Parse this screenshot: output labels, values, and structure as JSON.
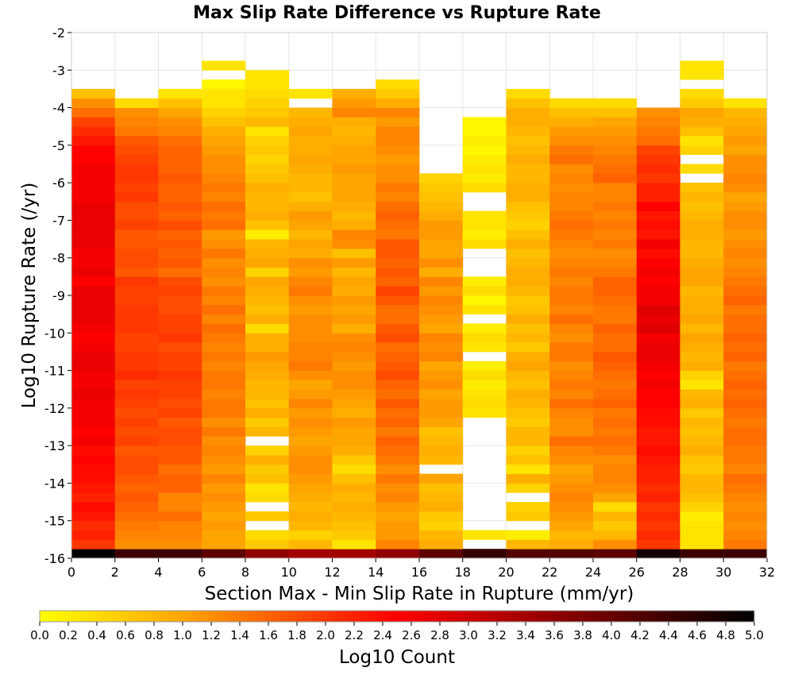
{
  "chart_data": {
    "type": "heatmap",
    "title": "Max Slip Rate Difference vs Rupture Rate",
    "xlabel": "Section Max - Min Slip Rate in Rupture (mm/yr)",
    "ylabel": "Log10 Rupture Rate (/yr)",
    "colorbar_label": "Log10 Count",
    "xlim": [
      0,
      32
    ],
    "ylim": [
      -16,
      -2
    ],
    "x_ticks": [
      "0",
      "2",
      "4",
      "6",
      "8",
      "10",
      "12",
      "14",
      "16",
      "18",
      "20",
      "22",
      "24",
      "26",
      "28",
      "30",
      "32"
    ],
    "y_ticks": [
      "-2",
      "-3",
      "-4",
      "-5",
      "-6",
      "-7",
      "-8",
      "-9",
      "-10",
      "-11",
      "-12",
      "-13",
      "-14",
      "-15",
      "-16"
    ],
    "colorbar_ticks": [
      "0.0",
      "0.2",
      "0.4",
      "0.6",
      "0.8",
      "1.0",
      "1.2",
      "1.4",
      "1.6",
      "1.8",
      "2.0",
      "2.2",
      "2.4",
      "2.6",
      "2.8",
      "3.0",
      "3.2",
      "3.4",
      "3.6",
      "3.8",
      "4.0",
      "4.2",
      "4.4",
      "4.6",
      "4.8",
      "5.0"
    ],
    "color_range": [
      0,
      5
    ],
    "colormap": [
      "#ffff00",
      "#ffa500",
      "#ff0000",
      "#000000"
    ],
    "x_bin_width": 2,
    "y_bin_height": 0.25,
    "y_bin_start": -16,
    "columns": [
      {
        "x0": 0,
        "v": [
          5.0,
          2.0,
          2.2,
          2.1,
          2.3,
          2.4,
          2.2,
          2.3,
          2.4,
          2.4,
          2.5,
          2.4,
          2.6,
          2.5,
          2.6,
          2.6,
          2.6,
          2.7,
          2.6,
          2.6,
          2.7,
          2.7,
          2.6,
          2.5,
          2.6,
          2.7,
          2.7,
          2.7,
          2.7,
          2.5,
          2.7,
          2.6,
          2.6,
          2.7,
          2.7,
          2.7,
          2.7,
          2.7,
          2.6,
          2.6,
          2.6,
          2.6,
          2.5,
          2.5,
          2.3,
          2.1,
          1.9,
          1.5,
          1.2,
          0.7,
          null,
          null,
          null,
          null,
          null,
          null
        ]
      },
      {
        "x0": 2,
        "v": [
          4.4,
          1.2,
          1.3,
          1.4,
          1.5,
          1.6,
          1.7,
          1.6,
          1.7,
          1.8,
          1.8,
          1.7,
          1.9,
          1.8,
          1.9,
          1.8,
          1.9,
          2.0,
          1.9,
          2.1,
          2.0,
          2.0,
          1.9,
          1.9,
          2.0,
          2.0,
          2.0,
          1.9,
          1.9,
          2.0,
          1.7,
          1.8,
          1.8,
          1.7,
          1.7,
          1.9,
          1.8,
          1.8,
          2.0,
          1.9,
          2.0,
          2.0,
          1.9,
          1.8,
          1.7,
          1.4,
          1.3,
          1.2,
          0.4,
          null,
          null,
          null,
          null,
          null,
          null,
          null
        ]
      },
      {
        "x0": 4,
        "v": [
          4.4,
          1.2,
          1.3,
          1.3,
          1.5,
          1.3,
          1.3,
          1.6,
          1.6,
          1.5,
          1.7,
          1.7,
          1.8,
          1.8,
          1.7,
          1.9,
          1.8,
          1.9,
          1.9,
          2.0,
          1.9,
          1.9,
          1.8,
          2.0,
          1.9,
          1.9,
          1.8,
          1.8,
          1.9,
          1.8,
          1.5,
          1.7,
          1.6,
          1.7,
          1.6,
          1.8,
          1.6,
          1.7,
          1.6,
          1.6,
          1.7,
          1.6,
          1.6,
          1.6,
          1.5,
          1.3,
          1.2,
          1.0,
          0.7,
          0.3,
          null,
          null,
          null,
          null,
          null,
          null
        ]
      },
      {
        "x0": 6,
        "v": [
          4.1,
          1.0,
          1.0,
          1.1,
          1.0,
          1.1,
          1.2,
          1.1,
          1.3,
          1.1,
          1.2,
          1.3,
          1.2,
          1.4,
          1.2,
          1.4,
          1.4,
          1.3,
          1.4,
          1.4,
          1.3,
          1.4,
          1.3,
          1.4,
          1.5,
          1.3,
          1.5,
          1.3,
          1.4,
          1.2,
          1.3,
          1.2,
          1.4,
          1.2,
          1.1,
          1.5,
          1.4,
          1.5,
          1.3,
          1.4,
          1.3,
          1.2,
          1.2,
          1.1,
          1.0,
          0.9,
          0.7,
          0.5,
          0.3,
          0.3,
          0.1,
          null,
          0.3,
          null,
          null,
          null
        ]
      },
      {
        "x0": 8,
        "v": [
          3.6,
          0.6,
          0.4,
          null,
          0.6,
          null,
          0.4,
          0.3,
          0.7,
          0.6,
          0.9,
          0.5,
          null,
          0.8,
          0.6,
          0.9,
          0.7,
          0.8,
          0.8,
          0.9,
          1.0,
          1.1,
          0.9,
          0.9,
          0.4,
          0.9,
          0.7,
          0.8,
          0.9,
          1.0,
          0.5,
          1.0,
          0.9,
          0.8,
          0.2,
          0.7,
          0.9,
          0.8,
          0.8,
          0.9,
          0.7,
          0.6,
          0.5,
          0.6,
          0.5,
          0.3,
          0.8,
          0.6,
          0.5,
          0.4,
          0.3,
          0.3,
          null,
          null,
          null,
          null
        ]
      },
      {
        "x0": 10,
        "v": [
          3.4,
          0.8,
          0.5,
          0.8,
          0.9,
          0.8,
          0.9,
          1.0,
          1.1,
          1.2,
          1.2,
          1.1,
          1.0,
          1.1,
          1.2,
          1.1,
          1.3,
          1.1,
          1.0,
          1.2,
          1.4,
          1.3,
          1.3,
          1.2,
          1.2,
          1.2,
          1.1,
          1.2,
          1.4,
          1.3,
          1.1,
          1.2,
          0.9,
          1.0,
          0.8,
          1.0,
          1.1,
          0.9,
          0.7,
          0.8,
          0.8,
          0.9,
          1.0,
          0.9,
          0.9,
          1.0,
          0.9,
          0.8,
          null,
          0.3,
          null,
          null,
          null,
          null,
          null,
          null
        ]
      },
      {
        "x0": 12,
        "v": [
          3.4,
          0.3,
          0.6,
          0.7,
          0.8,
          0.9,
          0.8,
          0.9,
          0.7,
          0.4,
          0.6,
          0.9,
          1.0,
          1.0,
          1.1,
          0.9,
          1.0,
          1.1,
          1.2,
          1.2,
          1.1,
          1.2,
          1.3,
          1.2,
          0.9,
          1.1,
          1.0,
          1.1,
          0.9,
          1.0,
          0.8,
          1.1,
          0.7,
          1.2,
          1.3,
          0.9,
          0.8,
          0.9,
          1.0,
          1.0,
          1.0,
          1.1,
          1.0,
          1.0,
          0.9,
          0.8,
          0.9,
          1.3,
          1.1,
          0.9,
          null,
          null,
          null,
          null,
          null,
          null
        ]
      },
      {
        "x0": 14,
        "v": [
          3.6,
          1.3,
          1.1,
          1.1,
          1.0,
          1.1,
          1.3,
          1.2,
          1.4,
          1.2,
          1.4,
          1.5,
          1.6,
          1.4,
          1.6,
          1.5,
          1.7,
          1.5,
          1.6,
          1.8,
          1.7,
          1.6,
          1.5,
          1.8,
          1.7,
          1.5,
          1.5,
          1.7,
          1.9,
          1.6,
          1.7,
          1.6,
          1.7,
          1.7,
          1.4,
          1.5,
          1.6,
          1.5,
          1.3,
          1.4,
          1.2,
          1.2,
          1.1,
          1.2,
          1.3,
          1.3,
          1.1,
          1.3,
          0.9,
          0.6,
          0.4,
          null,
          null,
          null,
          null,
          null
        ]
      },
      {
        "x0": 16,
        "v": [
          4.1,
          0.9,
          0.8,
          0.5,
          0.6,
          0.9,
          0.8,
          0.7,
          1.0,
          null,
          0.8,
          0.9,
          0.8,
          0.7,
          1.0,
          1.1,
          1.1,
          1.0,
          1.2,
          1.1,
          1.0,
          1.3,
          1.2,
          1.3,
          1.0,
          1.1,
          1.2,
          1.3,
          1.1,
          1.3,
          0.9,
          1.2,
          1.0,
          1.0,
          1.1,
          1.1,
          0.9,
          0.8,
          0.7,
          0.6,
          0.5,
          null,
          null,
          null,
          null,
          null,
          null,
          null,
          null,
          null,
          null,
          null,
          null,
          null,
          null,
          null
        ]
      },
      {
        "x0": 18,
        "v": [
          4.5,
          null,
          0.3,
          null,
          null,
          null,
          null,
          null,
          null,
          null,
          null,
          null,
          null,
          null,
          null,
          0.3,
          0.4,
          0.3,
          0.2,
          0.4,
          0.2,
          null,
          0.3,
          0.4,
          0.2,
          null,
          0.3,
          0.1,
          0.4,
          0.2,
          null,
          null,
          null,
          0.4,
          0.2,
          0.3,
          0.3,
          null,
          null,
          0.4,
          0.2,
          0.3,
          0.2,
          0.1,
          0.2,
          0.1,
          0.1,
          null,
          null,
          null,
          null,
          null,
          null,
          null,
          null,
          null
        ]
      },
      {
        "x0": 20,
        "v": [
          4.2,
          0.8,
          0.2,
          null,
          0.6,
          0.5,
          null,
          0.5,
          0.9,
          0.3,
          0.7,
          0.5,
          0.8,
          0.8,
          0.6,
          0.7,
          0.8,
          0.9,
          0.7,
          0.8,
          1.0,
          0.9,
          0.6,
          0.8,
          0.7,
          0.9,
          0.7,
          0.6,
          0.8,
          0.9,
          0.9,
          0.8,
          0.7,
          0.9,
          0.7,
          0.5,
          0.6,
          0.7,
          0.9,
          0.9,
          0.8,
          0.8,
          0.9,
          0.8,
          0.7,
          0.8,
          0.9,
          0.9,
          0.7,
          0.4,
          null,
          null,
          null,
          null,
          null,
          null
        ]
      },
      {
        "x0": 22,
        "v": [
          4.2,
          0.9,
          0.8,
          1.0,
          1.1,
          1.2,
          1.3,
          1.2,
          1.1,
          1.0,
          1.2,
          1.3,
          1.5,
          1.2,
          1.2,
          1.3,
          1.5,
          1.3,
          1.4,
          1.3,
          1.2,
          1.4,
          1.4,
          1.2,
          1.3,
          1.5,
          1.3,
          1.4,
          1.4,
          1.3,
          1.4,
          1.3,
          1.2,
          1.3,
          1.4,
          1.5,
          1.4,
          1.3,
          1.3,
          1.2,
          1.3,
          1.2,
          1.5,
          1.4,
          1.2,
          1.1,
          0.9,
          0.7,
          0.4,
          null,
          null,
          null,
          null,
          null,
          null,
          null
        ]
      },
      {
        "x0": 24,
        "v": [
          4.1,
          1.2,
          0.8,
          0.6,
          0.8,
          0.4,
          1.0,
          1.2,
          1.3,
          1.3,
          1.2,
          1.4,
          1.5,
          1.4,
          1.5,
          1.4,
          1.6,
          1.5,
          1.4,
          1.5,
          1.6,
          1.7,
          1.5,
          1.5,
          1.6,
          1.4,
          1.4,
          1.5,
          1.6,
          1.6,
          1.4,
          1.3,
          1.2,
          1.4,
          1.3,
          1.4,
          1.3,
          1.4,
          1.3,
          1.3,
          1.6,
          1.5,
          1.4,
          1.3,
          1.2,
          1.1,
          1.0,
          0.7,
          0.4,
          null,
          null,
          null,
          null,
          null,
          null,
          null
        ]
      },
      {
        "x0": 26,
        "v": [
          4.8,
          2.0,
          2.1,
          2.0,
          2.1,
          2.0,
          2.2,
          2.1,
          2.2,
          2.2,
          2.3,
          2.4,
          2.3,
          2.3,
          2.4,
          2.4,
          2.5,
          2.5,
          2.6,
          2.5,
          2.6,
          2.7,
          2.7,
          2.6,
          2.8,
          2.7,
          2.8,
          2.6,
          2.6,
          2.5,
          2.6,
          2.5,
          2.4,
          2.6,
          2.3,
          2.4,
          2.3,
          2.5,
          2.2,
          2.2,
          2.0,
          2.1,
          2.0,
          1.9,
          1.5,
          1.4,
          1.3,
          1.2,
          null,
          null,
          null,
          null,
          null,
          null,
          null,
          null
        ]
      },
      {
        "x0": 28,
        "v": [
          4.4,
          0.3,
          0.3,
          0.3,
          0.2,
          0.5,
          0.7,
          0.8,
          0.8,
          0.6,
          0.7,
          0.9,
          0.8,
          0.7,
          0.8,
          0.6,
          0.9,
          0.8,
          0.3,
          0.5,
          0.9,
          0.8,
          0.9,
          1.0,
          0.8,
          1.0,
          0.9,
          0.9,
          0.8,
          1.0,
          1.0,
          0.9,
          0.8,
          0.8,
          0.9,
          0.9,
          0.8,
          0.7,
          0.8,
          0.7,
          null,
          0.4,
          null,
          0.5,
          0.3,
          0.7,
          0.9,
          1.0,
          0.6,
          0.4,
          null,
          0.3,
          0.3,
          null,
          null,
          null
        ]
      },
      {
        "x0": 30,
        "v": [
          4.4,
          1.4,
          1.3,
          1.2,
          1.3,
          1.2,
          1.3,
          1.4,
          1.5,
          1.3,
          1.4,
          1.4,
          1.5,
          1.5,
          1.4,
          1.5,
          1.6,
          1.5,
          1.6,
          1.5,
          1.4,
          1.6,
          1.5,
          1.6,
          1.5,
          1.5,
          1.4,
          1.6,
          1.5,
          1.4,
          1.3,
          1.2,
          1.3,
          1.2,
          1.1,
          1.2,
          1.2,
          1.1,
          1.0,
          1.2,
          1.3,
          1.2,
          1.2,
          1.0,
          1.1,
          1.0,
          0.9,
          0.8,
          0.3,
          null,
          null,
          null,
          null,
          null,
          null,
          null
        ]
      }
    ]
  }
}
